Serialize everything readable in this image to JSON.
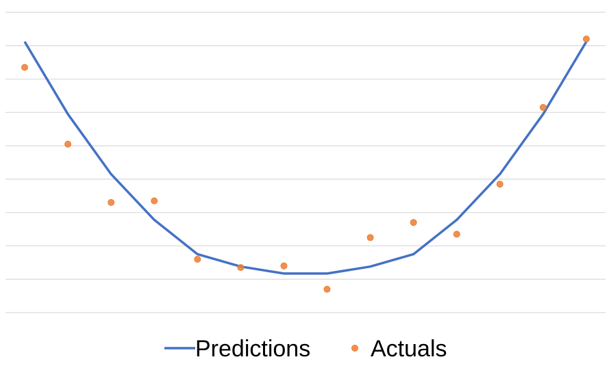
{
  "chart_data": {
    "type": "line",
    "title": "",
    "xlabel": "",
    "ylabel": "",
    "ylim": [
      0,
      9
    ],
    "grid": true,
    "legend_position": "bottom",
    "x": [
      1,
      2,
      3,
      4,
      5,
      6,
      7,
      8,
      9,
      10,
      11,
      12,
      13,
      14
    ],
    "series": [
      {
        "name": "Predictions",
        "kind": "line",
        "color": "#4472C4",
        "values": [
          8.12,
          5.95,
          4.15,
          2.78,
          1.75,
          1.38,
          1.17,
          1.17,
          1.38,
          1.75,
          2.78,
          4.15,
          5.95,
          8.12
        ]
      },
      {
        "name": "Actuals",
        "kind": "scatter",
        "color": "#ED7D31",
        "values": [
          7.35,
          5.05,
          3.3,
          3.35,
          1.6,
          1.35,
          1.4,
          0.7,
          2.25,
          2.7,
          2.35,
          3.85,
          6.15,
          8.2
        ]
      }
    ]
  }
}
